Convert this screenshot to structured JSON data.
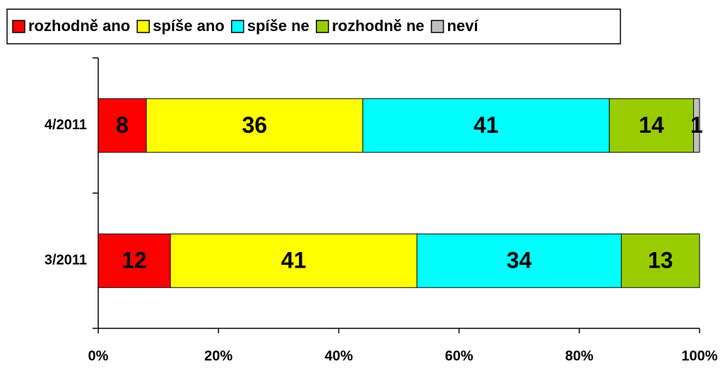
{
  "chart_data": {
    "type": "stacked_bar_horizontal",
    "categories": [
      "4/2011",
      "3/2011"
    ],
    "series": [
      {
        "name": "rozhodně ano",
        "color": "#ff0000",
        "values": [
          8,
          12
        ]
      },
      {
        "name": "spíše ano",
        "color": "#ffff00",
        "values": [
          36,
          41
        ]
      },
      {
        "name": "spíše ne",
        "color": "#00ffff",
        "values": [
          41,
          34
        ]
      },
      {
        "name": "rozhodně ne",
        "color": "#99cc00",
        "values": [
          14,
          13
        ]
      },
      {
        "name": "neví",
        "color": "#c0c0c0",
        "values": [
          1,
          null
        ]
      }
    ],
    "xlim": [
      0,
      100
    ],
    "xticks": [
      {
        "value": 0,
        "label": "0%"
      },
      {
        "value": 20,
        "label": "20%"
      },
      {
        "value": 40,
        "label": "40%"
      },
      {
        "value": 60,
        "label": "60%"
      },
      {
        "value": 80,
        "label": "80%"
      },
      {
        "value": 100,
        "label": "100%"
      }
    ],
    "legend": "top"
  }
}
